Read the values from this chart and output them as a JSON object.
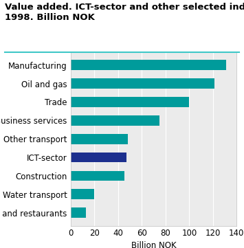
{
  "title_line1": "Value added. ICT-sector and other selected industries.",
  "title_line2": "1998. Billion NOK",
  "categories": [
    "Hotels and restaurants",
    "Water transport",
    "Construction",
    "ICT-sector",
    "Other transport",
    "Business services",
    "Trade",
    "Oil and gas",
    "Manufacturing"
  ],
  "values": [
    13,
    20,
    45,
    47,
    48,
    75,
    100,
    121,
    131
  ],
  "bar_colors": [
    "#009b9b",
    "#009b9b",
    "#009b9b",
    "#1c2f8e",
    "#009b9b",
    "#009b9b",
    "#009b9b",
    "#009b9b",
    "#009b9b"
  ],
  "xlabel": "Billion NOK",
  "xlim": [
    0,
    140
  ],
  "xticks": [
    0,
    20,
    40,
    60,
    80,
    100,
    120,
    140
  ],
  "title_fontsize": 9.5,
  "label_fontsize": 8.5,
  "tick_fontsize": 8.5,
  "title_line_color": "#40c8c8",
  "plot_bg_color": "#ebebeb",
  "fig_bg_color": "#ffffff",
  "grid_color": "#ffffff",
  "bar_height": 0.55
}
